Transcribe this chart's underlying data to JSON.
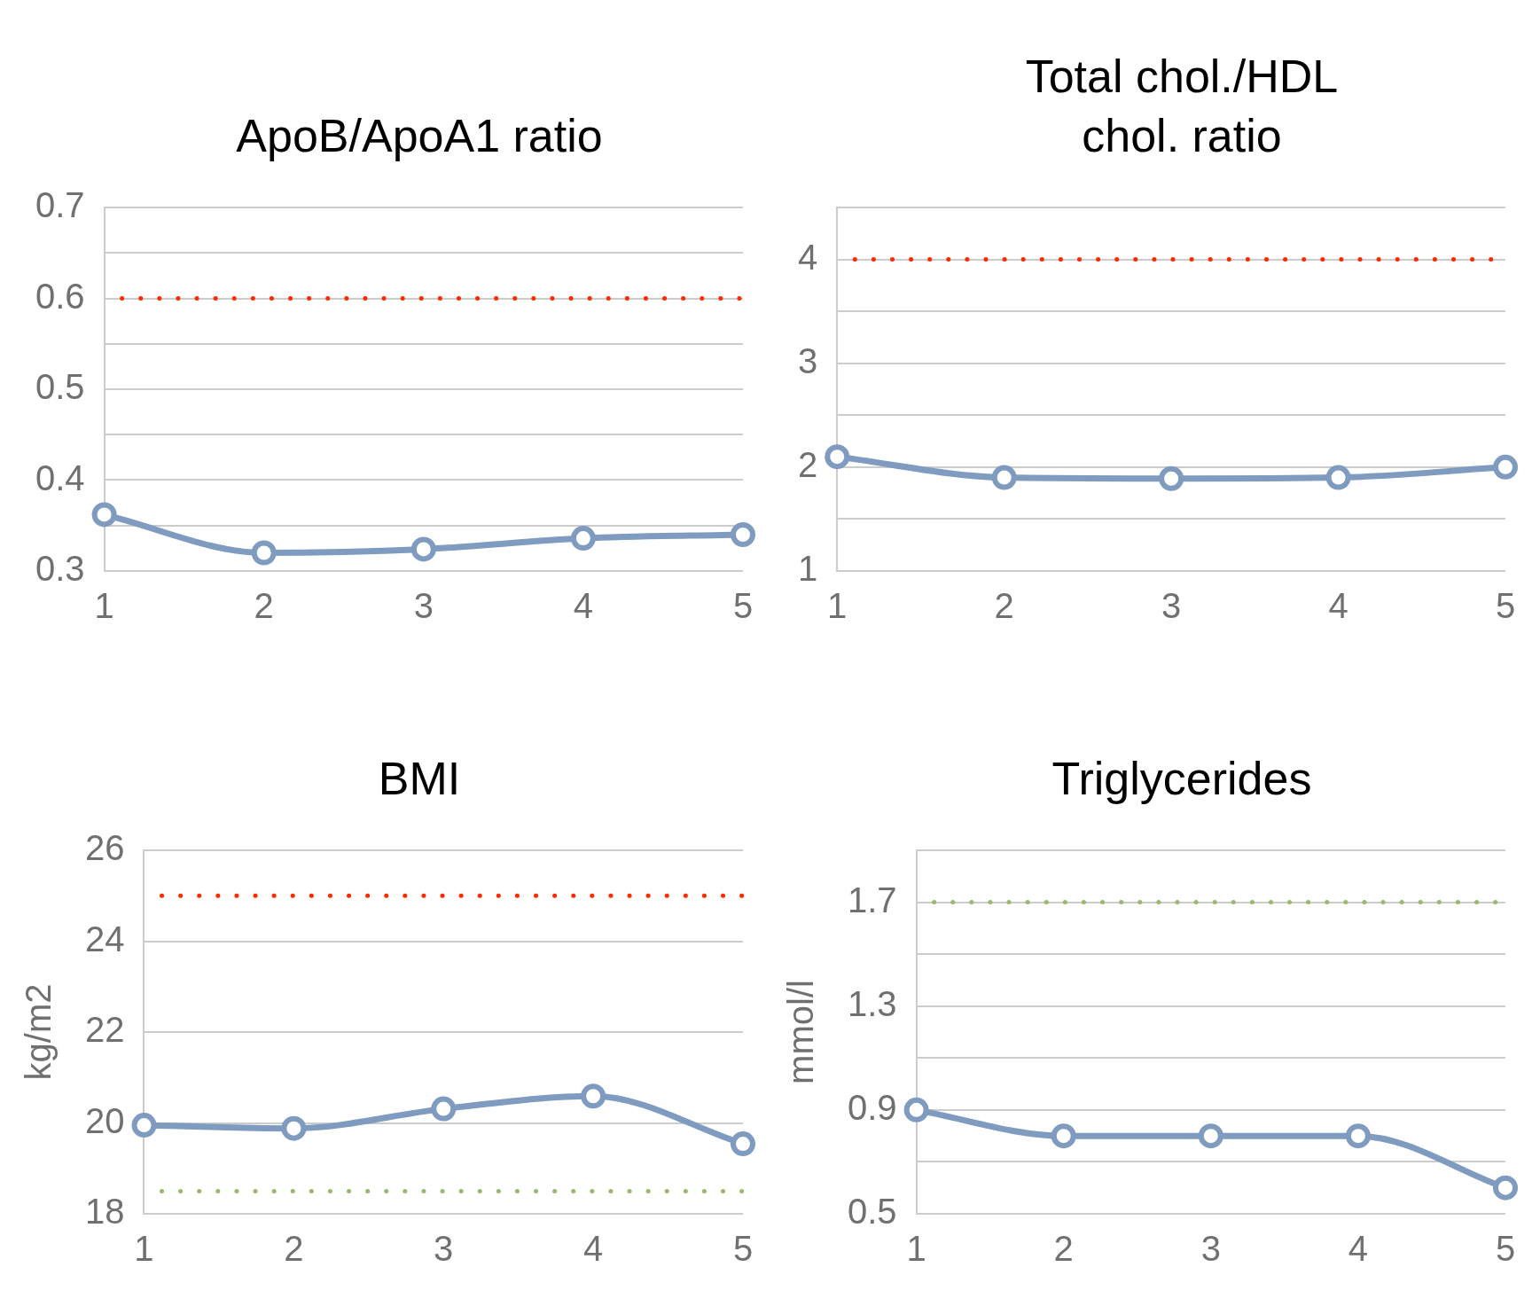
{
  "chart_data": [
    {
      "type": "line",
      "title": "ApoB/ApoA1 ratio",
      "categories": [
        "1",
        "2",
        "3",
        "4",
        "5"
      ],
      "series": [
        {
          "color": "#7f9bbf",
          "values": [
            0.362,
            0.32,
            0.324,
            0.336,
            0.34
          ]
        }
      ],
      "ylim": [
        0.3,
        0.7
      ],
      "yticks": [
        0.3,
        {
          "value": 0.35,
          "label": null
        },
        0.4,
        {
          "value": 0.45,
          "label": null
        },
        0.5,
        {
          "value": 0.55,
          "label": null
        },
        0.6,
        {
          "value": 0.65,
          "label": null
        },
        0.7
      ],
      "grid": "y",
      "legend": false,
      "marker": "circle",
      "ref_lines": [
        {
          "axis": "y",
          "value": 0.6,
          "color": "#ff2a00",
          "line_style": "dotted"
        }
      ]
    },
    {
      "type": "line",
      "title": "Total chol./HDL chol. ratio",
      "categories": [
        "1",
        "2",
        "3",
        "4",
        "5"
      ],
      "series": [
        {
          "color": "#7f9bbf",
          "values": [
            2.1,
            1.9,
            1.89,
            1.9,
            2.0
          ]
        }
      ],
      "ylim": [
        1,
        4.5
      ],
      "yticks": [
        1,
        {
          "value": 1.5,
          "label": null
        },
        2,
        {
          "value": 2.5,
          "label": null
        },
        3,
        {
          "value": 3.5,
          "label": null
        },
        4,
        {
          "value": 4.5,
          "label": null
        }
      ],
      "grid": "y",
      "legend": false,
      "marker": "circle",
      "ref_lines": [
        {
          "axis": "y",
          "value": 4,
          "color": "#ff2a00",
          "line_style": "dotted"
        }
      ]
    },
    {
      "type": "line",
      "title": "BMI",
      "ylabel": "kg/m2",
      "categories": [
        "1",
        "2",
        "3",
        "4",
        "5"
      ],
      "series": [
        {
          "color": "#7f9bbf",
          "values": [
            19.95,
            19.88,
            20.31,
            20.59,
            19.54
          ]
        }
      ],
      "ylim": [
        18,
        26
      ],
      "yticks": [
        18,
        20,
        22,
        24,
        26
      ],
      "grid": "y",
      "legend": false,
      "marker": "circle",
      "ref_lines": [
        {
          "axis": "y",
          "value": 25,
          "color": "#ff2a00",
          "line_style": "dotted"
        },
        {
          "axis": "y",
          "value": 18.5,
          "color": "#9bb86f",
          "line_style": "dotted"
        }
      ]
    },
    {
      "type": "line",
      "title": "Triglycerides",
      "ylabel": "mmol/l",
      "categories": [
        "1",
        "2",
        "3",
        "4",
        "5"
      ],
      "series": [
        {
          "color": "#7f9bbf",
          "values": [
            0.9,
            0.8,
            0.8,
            0.8,
            0.6
          ]
        }
      ],
      "ylim": [
        0.5,
        1.9
      ],
      "yticks": [
        0.5,
        {
          "value": 0.7,
          "label": null
        },
        0.9,
        {
          "value": 1.1,
          "label": null
        },
        1.3,
        {
          "value": 1.5,
          "label": null
        },
        1.7,
        {
          "value": 1.9,
          "label": null
        }
      ],
      "grid": "y",
      "legend": false,
      "marker": "circle",
      "ref_lines": [
        {
          "axis": "y",
          "value": 1.7,
          "color": "#9bb86f",
          "line_style": "dotted"
        }
      ]
    }
  ]
}
